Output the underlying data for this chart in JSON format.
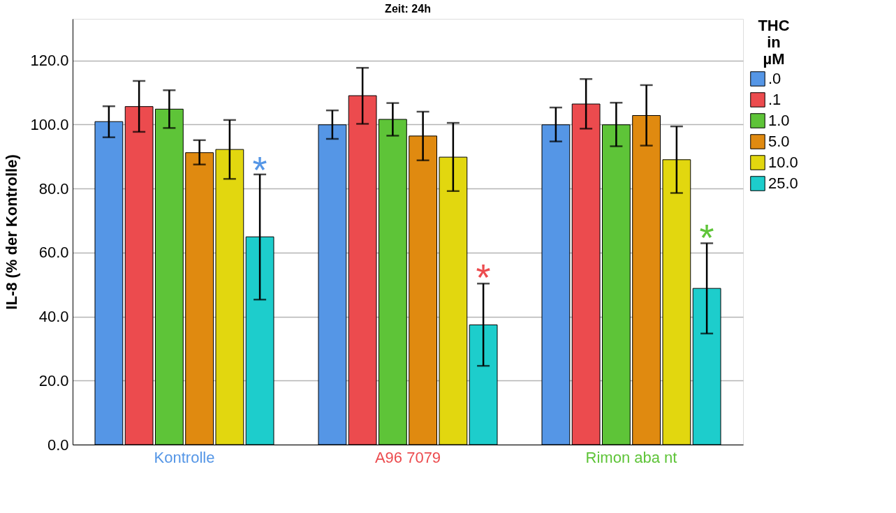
{
  "chart_data": {
    "type": "bar",
    "title": "Zeit: 24h",
    "ylabel": "IL-8 (% der Kontrolle)",
    "legend_title": "THC in µM",
    "categories": [
      "Kontrolle",
      "A96 7079",
      "Rimon aba nt"
    ],
    "series": [
      {
        "name": ".0",
        "color": "#5596e6",
        "values": [
          100.9,
          99.9,
          99.9
        ],
        "errors": [
          [
            96.0,
            105.7
          ],
          [
            95.5,
            104.4
          ],
          [
            94.7,
            105.3
          ]
        ]
      },
      {
        "name": ".1",
        "color": "#ec4b4e",
        "values": [
          105.6,
          109.0,
          106.4
        ],
        "errors": [
          [
            97.7,
            113.6
          ],
          [
            100.2,
            117.7
          ],
          [
            98.7,
            114.2
          ]
        ]
      },
      {
        "name": "1.0",
        "color": "#5ec438",
        "values": [
          104.8,
          101.6,
          99.9
        ],
        "errors": [
          [
            98.9,
            110.7
          ],
          [
            96.5,
            106.7
          ],
          [
            93.2,
            106.8
          ]
        ]
      },
      {
        "name": "5.0",
        "color": "#e08a10",
        "values": [
          91.2,
          96.4,
          102.8
        ],
        "errors": [
          [
            87.5,
            95.1
          ],
          [
            88.8,
            104.0
          ],
          [
            93.4,
            112.3
          ]
        ]
      },
      {
        "name": "10.0",
        "color": "#e2d70f",
        "values": [
          92.2,
          89.8,
          89.0
        ],
        "errors": [
          [
            83.0,
            101.4
          ],
          [
            79.2,
            100.5
          ],
          [
            78.6,
            99.4
          ]
        ]
      },
      {
        "name": "25.0",
        "color": "#1dcdcc",
        "values": [
          64.9,
          37.4,
          48.8
        ],
        "errors": [
          [
            45.3,
            84.4
          ],
          [
            24.6,
            50.3
          ],
          [
            34.7,
            62.9
          ]
        ]
      }
    ],
    "annotations": [
      {
        "text": "*",
        "x": "Kontrolle",
        "y": 88.2
      },
      {
        "text": "*",
        "x": "A96 7079",
        "y": 54.8
      },
      {
        "text": "*",
        "x": "Rimon aba nt",
        "y": 67.2
      }
    ],
    "ylim": [
      0,
      133
    ],
    "yticks": [
      {
        "value": 0,
        "label": "0.0"
      },
      {
        "value": 20,
        "label": "20.0"
      },
      {
        "value": 40,
        "label": "40.0"
      },
      {
        "value": 60,
        "label": "60.0"
      },
      {
        "value": 80,
        "label": "80.0"
      },
      {
        "value": 100,
        "label": "100.0"
      },
      {
        "value": 120,
        "label": "120.0"
      }
    ],
    "grid": "y",
    "legend": "top right"
  }
}
